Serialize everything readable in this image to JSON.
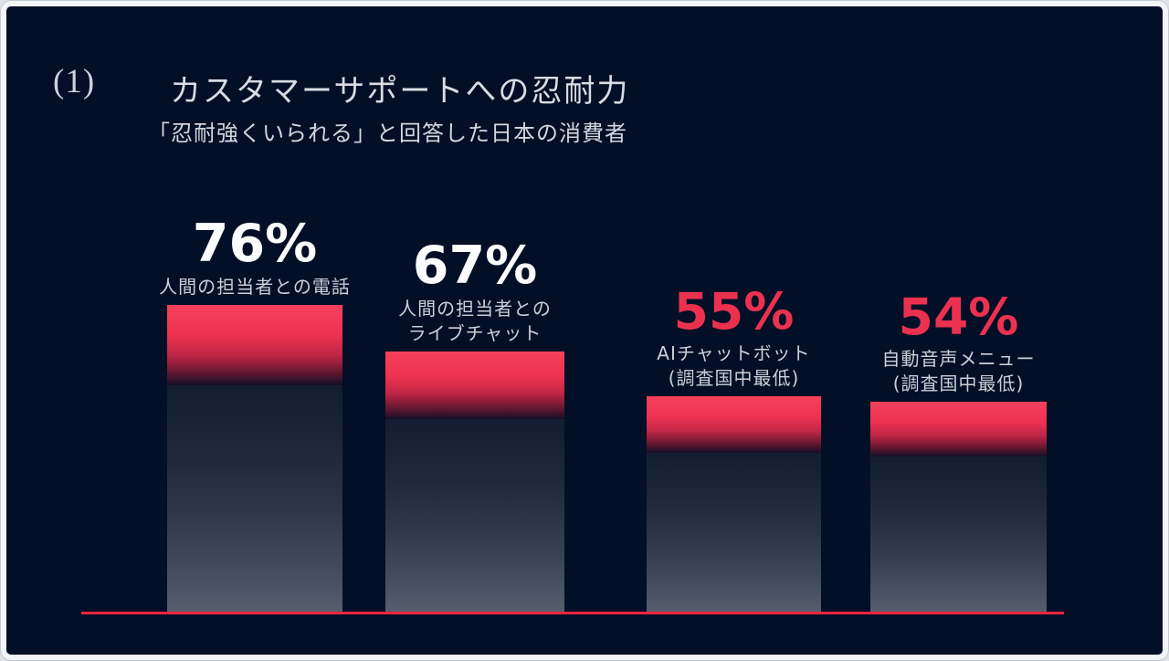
{
  "header": {
    "number_label": "(1)",
    "title": "カスタマーサポートへの忍耐力",
    "subtitle": "「忍耐強くいられる」と回答した日本の消費者"
  },
  "colors": {
    "background_navy": "#030f26",
    "frame_white": "#f2f4f7",
    "accent_red": "#ec3150",
    "bar_red_top": "#f5415b",
    "bar_slate_bottom": "#575f6d",
    "baseline_red": "#e82540",
    "text_light": "#d2d7df",
    "value_white": "#fbfcfe"
  },
  "chart_data": {
    "type": "bar",
    "title": "カスタマーサポートへの忍耐力",
    "subtitle": "「忍耐強くいられる」と回答した日本の消費者",
    "unit": "%",
    "categories": [
      "人間の担当者との電話",
      "人間の担当者とのライブチャット",
      "AIチャットボット (調査国中最低)",
      "自動音声メニュー (調査国中最低)"
    ],
    "values": [
      76,
      67,
      55,
      54
    ],
    "ylim": [
      0,
      100
    ],
    "grid": false,
    "legend": false,
    "baseline_axis": "red horizontal line",
    "bars": [
      {
        "value": 76,
        "value_label": "76%",
        "value_color": "white",
        "label_lines": [
          "人間の担当者との電話"
        ]
      },
      {
        "value": 67,
        "value_label": "67%",
        "value_color": "white",
        "label_lines": [
          "人間の担当者との",
          "ライブチャット"
        ]
      },
      {
        "value": 55,
        "value_label": "55%",
        "value_color": "red",
        "label_lines": [
          "AIチャットボット",
          "(調査国中最低)"
        ]
      },
      {
        "value": 54,
        "value_label": "54%",
        "value_color": "red",
        "label_lines": [
          "自動音声メニュー",
          "(調査国中最低)"
        ]
      }
    ]
  }
}
